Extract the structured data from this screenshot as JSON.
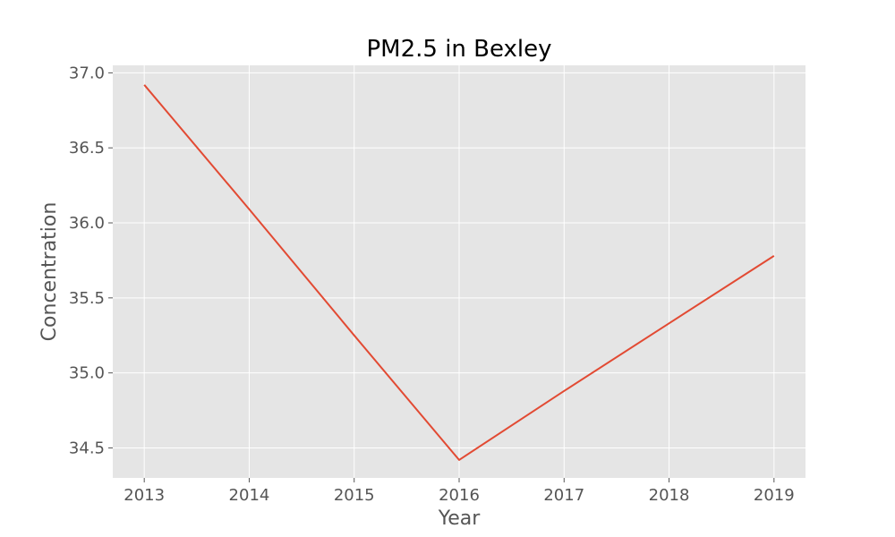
{
  "chart_data": {
    "type": "line",
    "title": "PM2.5 in Bexley",
    "xlabel": "Year",
    "ylabel": "Concentration",
    "x": [
      2013,
      2014,
      2015,
      2016,
      2017,
      2018,
      2019
    ],
    "series": [
      {
        "values": [
          36.92,
          36.09,
          35.25,
          34.42,
          34.88,
          35.33,
          35.78
        ],
        "color": "#e24a33"
      }
    ],
    "xlim": [
      2012.7,
      2019.3
    ],
    "ylim": [
      34.3,
      37.05
    ],
    "xticks": [
      "2013",
      "2014",
      "2015",
      "2016",
      "2017",
      "2018",
      "2019"
    ],
    "yticks": [
      "34.5",
      "35.0",
      "35.5",
      "36.0",
      "36.5",
      "37.0"
    ],
    "grid": true,
    "background_color": "#e5e5e5",
    "grid_color": "#ffffff",
    "tick_color": "#555555"
  }
}
